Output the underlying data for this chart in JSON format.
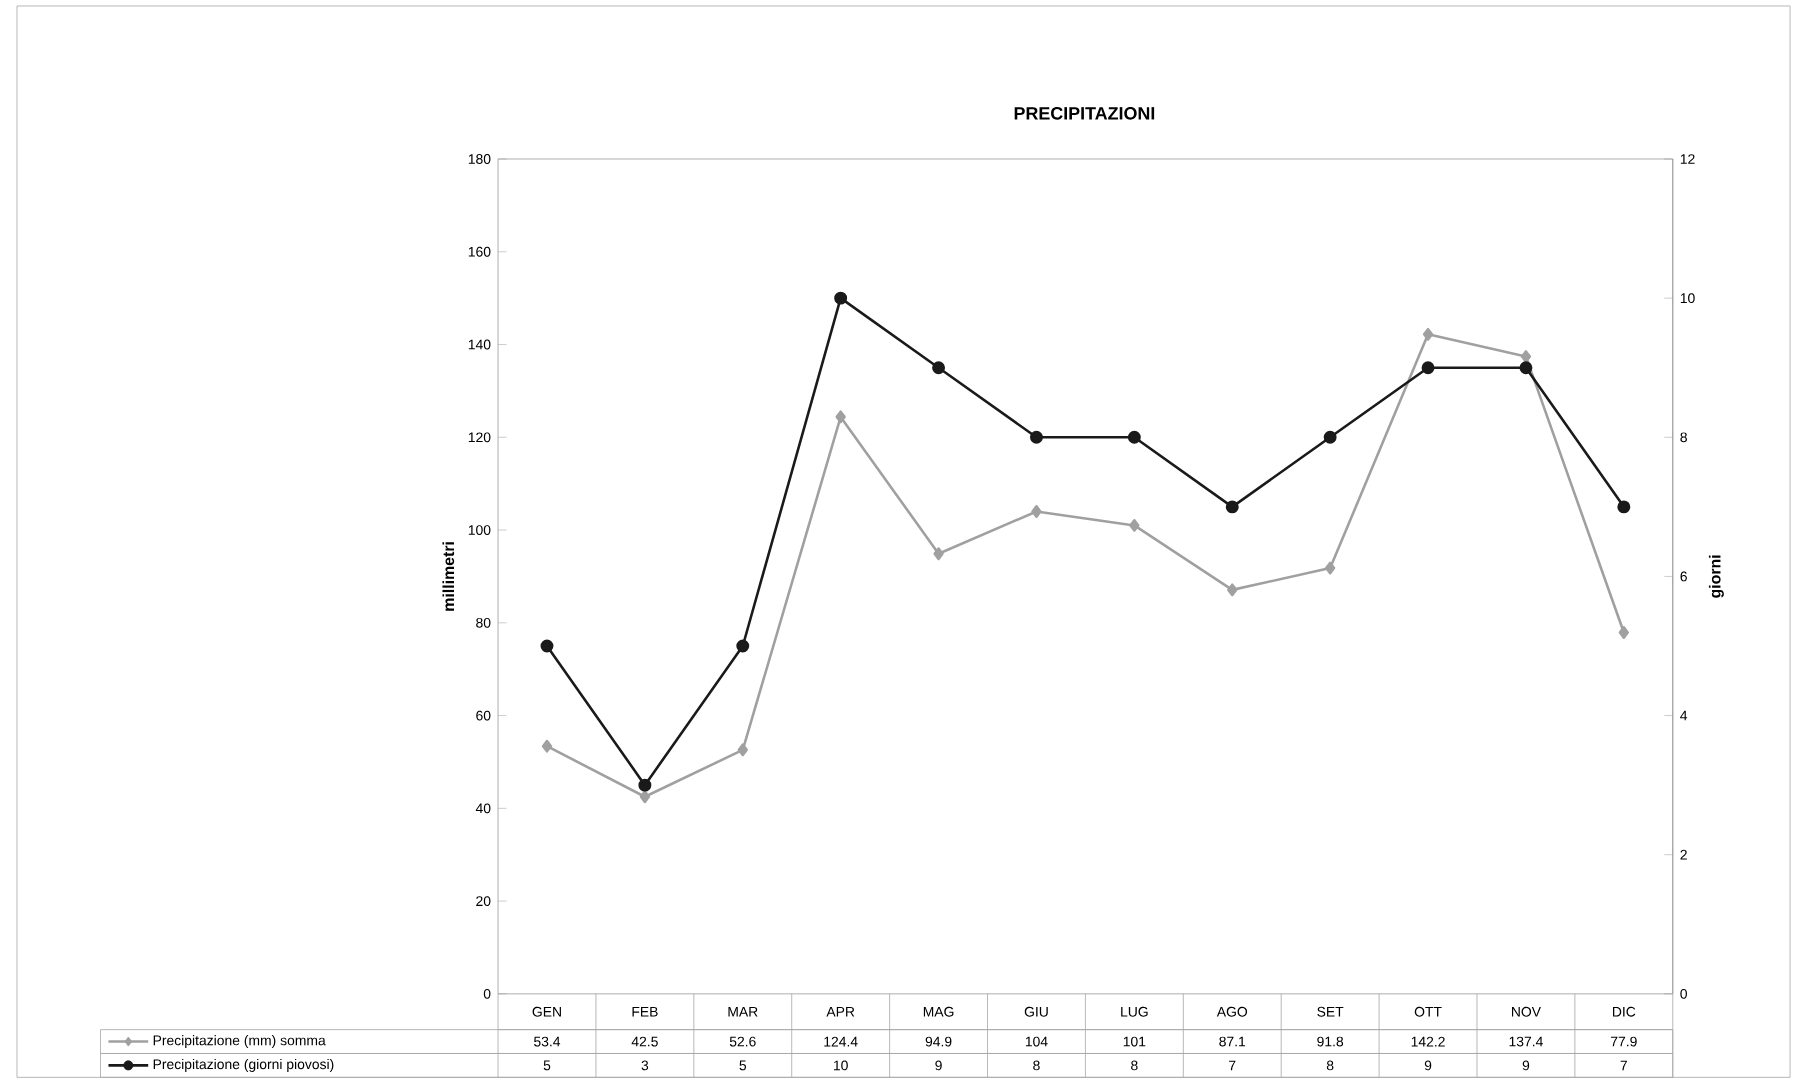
{
  "chart_data": {
    "type": "line",
    "title": "PRECIPITAZIONI",
    "ylabel": "millimetri",
    "y2label": "giorni",
    "categories": [
      "GEN",
      "FEB",
      "MAR",
      "APR",
      "MAG",
      "GIU",
      "LUG",
      "AGO",
      "SET",
      "OTT",
      "NOV",
      "DIC"
    ],
    "series": [
      {
        "name": "Precipitazione (mm) somma",
        "color": "#a0a0a0",
        "marker": "diamond",
        "values": [
          53.4,
          42.5,
          52.6,
          124.4,
          94.9,
          104,
          101,
          87.1,
          91.8,
          142.2,
          137.4,
          77.9
        ]
      },
      {
        "name": "Precipitazione (giorni piovosi)",
        "color": "#1a1a1a",
        "marker": "circle",
        "axis": "y2",
        "values": [
          5,
          3,
          5,
          10,
          9,
          8,
          8,
          7,
          8,
          9,
          9,
          7
        ]
      }
    ],
    "ylim": [
      0,
      180
    ],
    "yticks": [
      0,
      20,
      40,
      60,
      80,
      100,
      120,
      140,
      160,
      180
    ],
    "y2lim": [
      0,
      12
    ],
    "y2ticks": [
      0,
      2,
      4,
      6,
      8,
      10,
      12
    ],
    "grid": false,
    "legend": "bottom",
    "data_labels": true,
    "line_style": "solid"
  }
}
